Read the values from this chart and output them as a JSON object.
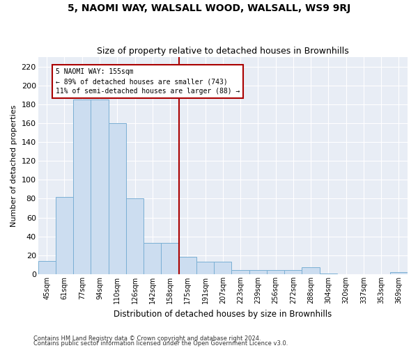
{
  "title": "5, NAOMI WAY, WALSALL WOOD, WALSALL, WS9 9RJ",
  "subtitle": "Size of property relative to detached houses in Brownhills",
  "xlabel": "Distribution of detached houses by size in Brownhills",
  "ylabel": "Number of detached properties",
  "categories": [
    "45sqm",
    "61sqm",
    "77sqm",
    "94sqm",
    "110sqm",
    "126sqm",
    "142sqm",
    "158sqm",
    "175sqm",
    "191sqm",
    "207sqm",
    "223sqm",
    "239sqm",
    "256sqm",
    "272sqm",
    "288sqm",
    "304sqm",
    "320sqm",
    "337sqm",
    "353sqm",
    "369sqm"
  ],
  "values": [
    14,
    82,
    185,
    185,
    160,
    80,
    33,
    33,
    18,
    13,
    13,
    4,
    4,
    4,
    4,
    7,
    1,
    0,
    0,
    0,
    2
  ],
  "bar_color": "#ccddf0",
  "bar_edge_color": "#7aafd4",
  "vline_pos": 7.5,
  "vline_color": "#aa0000",
  "annotation_text": "5 NAOMI WAY: 155sqm\n← 89% of detached houses are smaller (743)\n11% of semi-detached houses are larger (88) →",
  "annotation_box_facecolor": "#ffffff",
  "annotation_box_edgecolor": "#aa0000",
  "ylim": [
    0,
    230
  ],
  "yticks": [
    0,
    20,
    40,
    60,
    80,
    100,
    120,
    140,
    160,
    180,
    200,
    220
  ],
  "bg_color": "#e8edf5",
  "grid_color": "#ffffff",
  "footer1": "Contains HM Land Registry data © Crown copyright and database right 2024.",
  "footer2": "Contains public sector information licensed under the Open Government Licence v3.0."
}
